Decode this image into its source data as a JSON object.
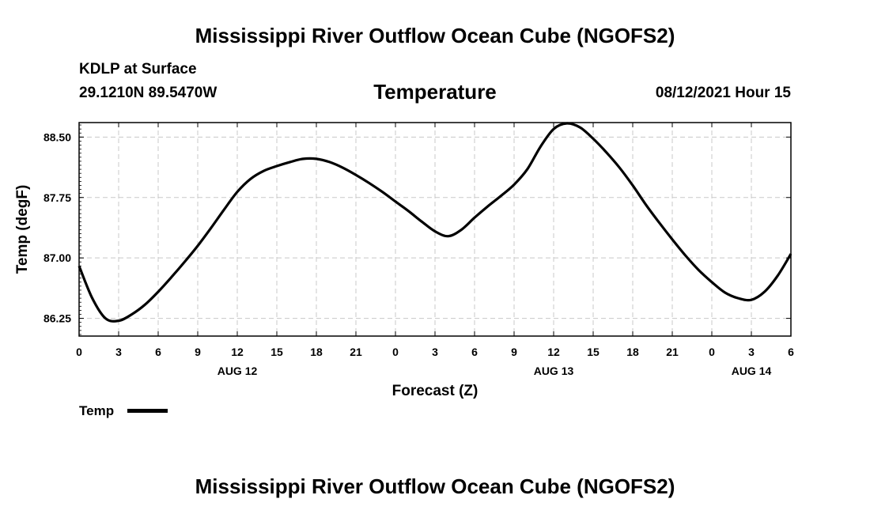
{
  "header": {
    "main_title": "Mississippi River Outflow Ocean Cube (NGOFS2)",
    "station": "KDLP at Surface",
    "coords": "29.1210N  89.5470W",
    "chart_title": "Temperature",
    "datetime": "08/12/2021 Hour 15"
  },
  "footer": {
    "title": "Mississippi River Outflow Ocean Cube (NGOFS2)"
  },
  "legend": {
    "label": "Temp"
  },
  "chart_data": {
    "type": "line",
    "title": "Temperature",
    "xlabel": "Forecast (Z)",
    "ylabel": "Temp (degF)",
    "xlim": [
      0,
      54
    ],
    "ylim": [
      86.03,
      88.68
    ],
    "yticks": [
      86.25,
      87.0,
      87.75,
      88.5
    ],
    "ytick_labels": [
      "86.25",
      "87.00",
      "87.75",
      "88.50"
    ],
    "xtick_labels": [
      "0",
      "3",
      "6",
      "9",
      "12",
      "15",
      "18",
      "21",
      "0",
      "3",
      "6",
      "9",
      "12",
      "15",
      "18",
      "21",
      "0",
      "3",
      "6"
    ],
    "date_labels": [
      {
        "label": "AUG 12",
        "hour": 12
      },
      {
        "label": "AUG 13",
        "hour": 36
      },
      {
        "label": "AUG 14",
        "hour": 51
      }
    ],
    "grid": true,
    "series": [
      {
        "name": "Temp",
        "color": "#000000",
        "x": [
          0,
          1,
          2,
          3,
          4,
          5,
          6,
          7,
          8,
          9,
          10,
          11,
          12,
          13,
          14,
          15,
          16,
          17,
          18,
          19,
          20,
          21,
          22,
          23,
          24,
          25,
          26,
          27,
          28,
          29,
          30,
          31,
          32,
          33,
          34,
          35,
          36,
          37,
          38,
          39,
          40,
          41,
          42,
          43,
          44,
          45,
          46,
          47,
          48,
          49,
          50,
          51,
          52,
          53,
          54
        ],
        "y": [
          86.9,
          86.5,
          86.25,
          86.22,
          86.3,
          86.42,
          86.58,
          86.76,
          86.95,
          87.15,
          87.37,
          87.6,
          87.82,
          87.98,
          88.08,
          88.14,
          88.19,
          88.23,
          88.23,
          88.19,
          88.12,
          88.03,
          87.93,
          87.82,
          87.7,
          87.58,
          87.45,
          87.33,
          87.27,
          87.35,
          87.5,
          87.64,
          87.77,
          87.91,
          88.1,
          88.38,
          88.6,
          88.67,
          88.62,
          88.48,
          88.31,
          88.12,
          87.9,
          87.66,
          87.44,
          87.23,
          87.03,
          86.85,
          86.7,
          86.57,
          86.5,
          86.48,
          86.58,
          86.78,
          87.05
        ]
      }
    ]
  }
}
